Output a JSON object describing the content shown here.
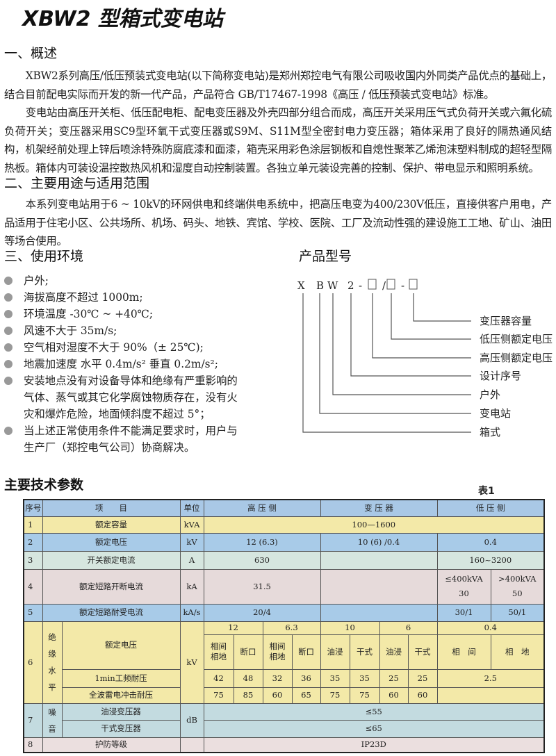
{
  "title": "XBW2 型箱式变电站",
  "sections": {
    "s1": "一、概述",
    "s2": "二、主要用途与适用范围",
    "s3": "三、使用环境",
    "model": "产品型号",
    "params": "主要技术参数"
  },
  "overview": [
    "XBW2系列高压/低压预装式变电站(以下简称变电站)是郑州郑控电气有限公司吸收国内外同类产品优点的基础上，结合目前配电实际而开发的新一代产品，产品符合 GB/T17467-1998《高压 / 低压预装式变电站》标准。",
    "变电站由高压开关柜、低压配电柜、配电变压器及外壳四部分组合而成，高压开关采用压气式负荷开关或六氟化硫负荷开关；变压器采用SC9型环氧干式变压器或S9M、S11M型全密封电力变压器；箱体采用了良好的隔热通风结构，机架经前处理上锌后喷涂特殊防腐底漆和面漆，箱壳采用彩色涂层钢板和自熄性聚苯乙烯泡沫塑料制成的超轻型隔热板。箱体内可装设温控散热风机和湿度自动控制装置。各独立单元装设完善的控制、保护、带电显示和照明系统。"
  ],
  "usage": "本系列变电站用于6 ~ 10kV的环网供电和终端供电系统中，把高压电变为400/230V低压，直接供客户用电，产品适用于住宅小区、公共场所、机场、码头、地铁、宾馆、学校、医院、工厂及流动性强的建设施工工地、矿山、油田等场合使用。",
  "environment": [
    "户外;",
    "海拔高度不超过 1000m;",
    "环境温度 -30℃ ~ +40℃;",
    "风速不大于 35m/s;",
    "空气相对湿度不大于 90%（± 25℃);",
    "地震加速度  水平 0.4m/s² 垂直 0.2m/s²;",
    "安装地点没有对设备导体和绝缘有严重影响的气体、蒸气或其它化学腐蚀物质存在，没有火灾和爆炸危险，地面倾斜度不超过 5°；",
    "当上述正常使用条件不能满足要求时，用户与生产厂（郑控电气公司）协商解决。"
  ],
  "model_code": {
    "x": "X",
    "b": "B",
    "w": "W",
    "n": "2",
    "d1": "-",
    "sl": "/",
    "d2": "-"
  },
  "model_labels": [
    "变压器容量",
    "低压侧额定电压",
    "高压侧额定电压",
    "设计序号",
    "户外",
    "变电站",
    "箱式"
  ],
  "table_label": "表1",
  "table": {
    "header": {
      "seq": "序号",
      "item": "项　　目",
      "unit": "单位",
      "hv": "高 压 侧",
      "tr": "变 压 器",
      "lv": "低 压 侧"
    },
    "r1": {
      "seq": "1",
      "item": "额定容量",
      "unit": "kVA",
      "v": "100—1600"
    },
    "r2": {
      "seq": "2",
      "item": "额定电压",
      "unit": "kV",
      "hv": "12 (6.3)",
      "tr": "10 (6) /0.4",
      "lv": "0.4"
    },
    "r3": {
      "seq": "3",
      "item": "开关额定电流",
      "unit": "A",
      "hv": "630",
      "lv": "160~3200"
    },
    "r4": {
      "seq": "4",
      "item": "额定短路开断电流",
      "unit": "kA",
      "hv": "31.5",
      "lv1a": "≤400kVA",
      "lv1b": "30",
      "lv2a": ">400kVA",
      "lv2b": "50"
    },
    "r5": {
      "seq": "5",
      "item": "额定短路耐受电流",
      "unit": "kA/s",
      "hv": "20/4",
      "lv1": "30/1",
      "lv2": "50/1"
    },
    "r6": {
      "seq": "6",
      "group": [
        "绝",
        "缘",
        "水",
        "平"
      ],
      "item": "额定电压",
      "unit": "kV",
      "volts": [
        "12",
        "6.3",
        "10",
        "6",
        "0.4"
      ],
      "sub": [
        "相间相地",
        "断口",
        "相间相地",
        "断口",
        "油浸",
        "干式",
        "油浸",
        "干式",
        "相　间",
        "相　地"
      ],
      "pf_item": "1min工频耐压",
      "pf": [
        "42",
        "48",
        "32",
        "36",
        "35",
        "35",
        "25",
        "25",
        "2.5"
      ],
      "li_item": "全波雷电冲击耐压",
      "li": [
        "75",
        "85",
        "60",
        "65",
        "75",
        "75",
        "60",
        "60"
      ]
    },
    "r7": {
      "seq": "7",
      "group": [
        "噪",
        "音"
      ],
      "unit": "dB",
      "item1": "油浸变压器",
      "v1": "≤55",
      "item2": "干式变压器",
      "v2": "≤65"
    },
    "r8": {
      "seq": "8",
      "item": "护防等级",
      "v": "IP23D"
    }
  }
}
